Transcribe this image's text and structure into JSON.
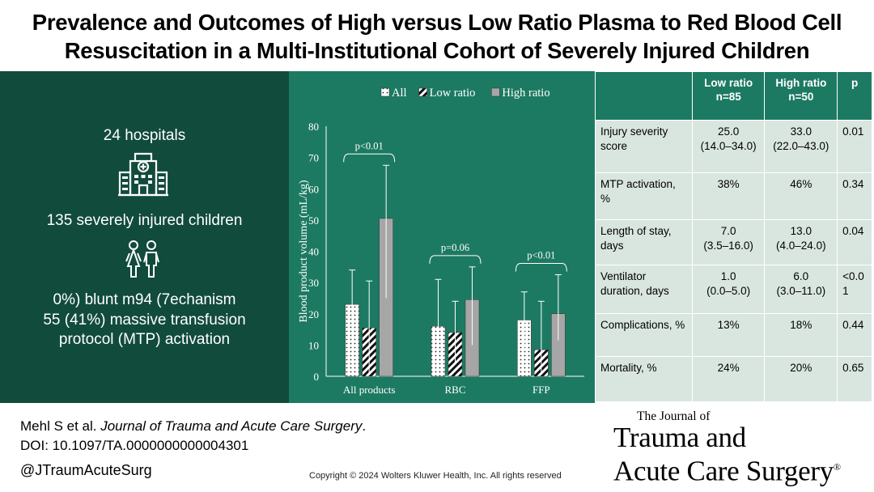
{
  "title": {
    "line1": "Prevalence and Outcomes of High versus Low Ratio Plasma to Red Blood Cell",
    "line2": "Resuscitation in a Multi-Institutional Cohort of Severely Injured Children"
  },
  "left_panel": {
    "hospitals": "24 hospitals",
    "children": "135 severely injured children",
    "mechanism": "0%) blunt m94 (7echanism",
    "mtp_line1": "55 (41%) massive transfusion",
    "mtp_line2": "protocol (MTP) activation"
  },
  "chart_data": {
    "type": "bar",
    "categories": [
      "All products",
      "RBC",
      "FFP"
    ],
    "series": [
      {
        "name": "All",
        "values": [
          23,
          16,
          18
        ],
        "error": [
          [
            14,
            34
          ],
          [
            1,
            31
          ],
          [
            8,
            27
          ]
        ],
        "pattern": "dots"
      },
      {
        "name": "Low ratio",
        "values": [
          15.5,
          14,
          8.5
        ],
        "error": [
          [
            1,
            30.5
          ],
          [
            4,
            24
          ],
          [
            1,
            24
          ]
        ],
        "pattern": "diagonal"
      },
      {
        "name": "High ratio",
        "values": [
          50.5,
          24.5,
          20
        ],
        "error": [
          [
            25,
            67.5
          ],
          [
            10,
            35
          ],
          [
            11.5,
            32.5
          ]
        ],
        "pattern": "solid"
      }
    ],
    "ylabel": "Blood product volume (mL/kg)",
    "xlabel": "",
    "ylim": [
      0,
      80
    ],
    "yticks": [
      0,
      10,
      20,
      30,
      40,
      50,
      60,
      70,
      80
    ],
    "legend": [
      "All",
      "Low ratio",
      "High ratio"
    ],
    "annotations": [
      {
        "category": "All products",
        "text": "p<0.01"
      },
      {
        "category": "RBC",
        "text": "p=0.06"
      },
      {
        "category": "FFP",
        "text": "p<0.01"
      }
    ],
    "colors": {
      "background": "#1d7a62",
      "solid": "#a6a6a6",
      "white": "#ffffff"
    }
  },
  "table": {
    "headers": [
      "",
      "Low ratio n=85",
      "High ratio n=50",
      "p"
    ],
    "header_low_line1": "Low ratio",
    "header_low_line2": "n=85",
    "header_high_line1": "High ratio",
    "header_high_line2": "n=50",
    "header_p": "p",
    "rows": [
      {
        "label": "Injury severity score",
        "low": "25.0",
        "low_range": "(14.0–34.0)",
        "high": "33.0",
        "high_range": "(22.0–43.0)",
        "p": "0.01"
      },
      {
        "label": "MTP activation, %",
        "low": "38%",
        "low_range": "",
        "high": "46%",
        "high_range": "",
        "p": "0.34"
      },
      {
        "label": "Length of stay, days",
        "low": "7.0",
        "low_range": "(3.5–16.0)",
        "high": "13.0",
        "high_range": "(4.0–24.0)",
        "p": "0.04"
      },
      {
        "label": "Ventilator duration, days",
        "low": "1.0",
        "low_range": "(0.0–5.0)",
        "high": "6.0",
        "high_range": "(3.0–11.0)",
        "p": "<0.01"
      },
      {
        "label": "Complications, %",
        "low": "13%",
        "low_range": "",
        "high": "18%",
        "high_range": "",
        "p": "0.44"
      },
      {
        "label": "Mortality, %",
        "low": "24%",
        "low_range": "",
        "high": "20%",
        "high_range": "",
        "p": "0.65"
      }
    ]
  },
  "footer": {
    "citation_authors": "Mehl S et al. ",
    "citation_journal": "Journal of Trauma and Acute Care Surgery",
    "citation_end": ".",
    "doi": "DOI: 10.1097/TA.0000000000004301",
    "handle": "@JTraumAcuteSurg",
    "copyright": "Copyright © 2024  Wolters Kluwer Health, Inc. All rights reserved",
    "journal_small": "The Journal of",
    "journal_line1": "Trauma and",
    "journal_line2": "Acute Care Surgery",
    "registered": "®"
  },
  "colors": {
    "dark_green": "#114b3c",
    "mid_green": "#1d7a62",
    "table_cell": "#d9e6e0"
  }
}
